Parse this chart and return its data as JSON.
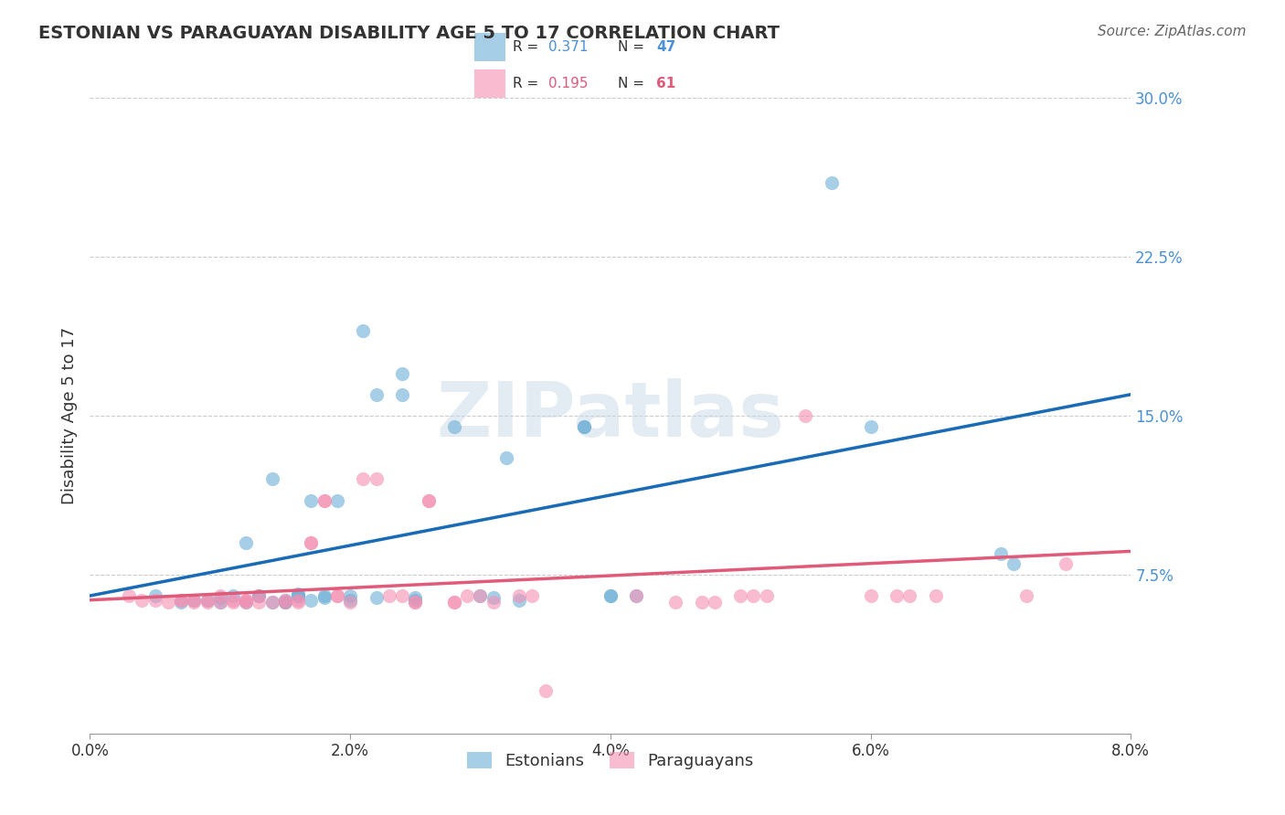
{
  "title": "ESTONIAN VS PARAGUAYAN DISABILITY AGE 5 TO 17 CORRELATION CHART",
  "source": "Source: ZipAtlas.com",
  "ylabel": "Disability Age 5 to 17",
  "xlabel_ticks": [
    "0.0%",
    "2.0%",
    "4.0%",
    "6.0%",
    "8.0%"
  ],
  "ylabel_ticks": [
    "7.5%",
    "15.0%",
    "22.5%",
    "30.0%"
  ],
  "xlim": [
    0.0,
    0.08
  ],
  "ylim": [
    0.0,
    0.3
  ],
  "ytick_positions": [
    0.075,
    0.15,
    0.225,
    0.3
  ],
  "xtick_positions": [
    0.0,
    0.02,
    0.04,
    0.06,
    0.08
  ],
  "blue_color": "#6baed6",
  "pink_color": "#f48fb1",
  "line_blue": "#1a6bb5",
  "line_pink": "#e05a7a",
  "legend_R_blue": "0.371",
  "legend_N_blue": "47",
  "legend_R_pink": "0.195",
  "legend_N_pink": "61",
  "watermark": "ZIPatlas",
  "watermark_color": "#c8d8e8",
  "blue_scatter_x": [
    0.005,
    0.007,
    0.008,
    0.009,
    0.01,
    0.01,
    0.011,
    0.012,
    0.012,
    0.013,
    0.013,
    0.014,
    0.014,
    0.015,
    0.015,
    0.015,
    0.016,
    0.016,
    0.016,
    0.017,
    0.017,
    0.018,
    0.018,
    0.019,
    0.02,
    0.02,
    0.021,
    0.022,
    0.022,
    0.024,
    0.024,
    0.025,
    0.025,
    0.028,
    0.03,
    0.031,
    0.032,
    0.033,
    0.038,
    0.038,
    0.04,
    0.04,
    0.042,
    0.057,
    0.06,
    0.07,
    0.071
  ],
  "blue_scatter_y": [
    0.065,
    0.062,
    0.063,
    0.063,
    0.062,
    0.064,
    0.065,
    0.09,
    0.062,
    0.065,
    0.065,
    0.062,
    0.12,
    0.062,
    0.062,
    0.063,
    0.065,
    0.065,
    0.066,
    0.063,
    0.11,
    0.065,
    0.064,
    0.11,
    0.063,
    0.065,
    0.19,
    0.16,
    0.064,
    0.16,
    0.17,
    0.064,
    0.063,
    0.145,
    0.065,
    0.064,
    0.13,
    0.063,
    0.145,
    0.145,
    0.065,
    0.065,
    0.065,
    0.26,
    0.145,
    0.085,
    0.08
  ],
  "pink_scatter_x": [
    0.003,
    0.004,
    0.005,
    0.006,
    0.007,
    0.007,
    0.008,
    0.008,
    0.009,
    0.009,
    0.01,
    0.01,
    0.011,
    0.011,
    0.012,
    0.012,
    0.012,
    0.013,
    0.013,
    0.014,
    0.015,
    0.015,
    0.016,
    0.016,
    0.017,
    0.017,
    0.018,
    0.018,
    0.019,
    0.019,
    0.02,
    0.021,
    0.022,
    0.023,
    0.024,
    0.025,
    0.025,
    0.026,
    0.026,
    0.028,
    0.028,
    0.029,
    0.03,
    0.031,
    0.033,
    0.034,
    0.035,
    0.042,
    0.045,
    0.047,
    0.048,
    0.05,
    0.051,
    0.052,
    0.055,
    0.06,
    0.062,
    0.063,
    0.065,
    0.072,
    0.075
  ],
  "pink_scatter_y": [
    0.065,
    0.063,
    0.063,
    0.062,
    0.063,
    0.063,
    0.062,
    0.063,
    0.062,
    0.063,
    0.062,
    0.065,
    0.062,
    0.063,
    0.062,
    0.063,
    0.063,
    0.062,
    0.065,
    0.062,
    0.062,
    0.063,
    0.063,
    0.062,
    0.09,
    0.09,
    0.11,
    0.11,
    0.065,
    0.065,
    0.062,
    0.12,
    0.12,
    0.065,
    0.065,
    0.062,
    0.062,
    0.11,
    0.11,
    0.062,
    0.062,
    0.065,
    0.065,
    0.062,
    0.065,
    0.065,
    0.02,
    0.065,
    0.062,
    0.062,
    0.062,
    0.065,
    0.065,
    0.065,
    0.15,
    0.065,
    0.065,
    0.065,
    0.065,
    0.065,
    0.08
  ]
}
